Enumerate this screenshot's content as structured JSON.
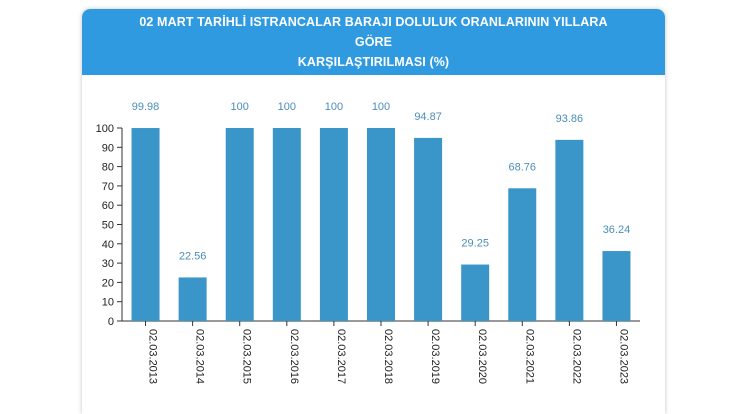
{
  "header": {
    "title_line1": "02 MART TARİHLİ ISTRANCALAR BARAJI DOLULUK ORANLARININ YILLARA GÖRE",
    "title_line2": "KARŞILAŞTIRILMASI (%)"
  },
  "colors": {
    "header_bg": "#2f9ae0",
    "bar": "#3a95c8",
    "value_label": "#4a8db8"
  },
  "chart_data": {
    "type": "bar",
    "title": "02 MART TARİHLİ ISTRANCALAR BARAJI DOLULUK ORANLARININ YILLARA GÖRE KARŞILAŞTIRILMASI (%)",
    "categories": [
      "02.03.2013",
      "02.03.2014",
      "02.03.2015",
      "02.03.2016",
      "02.03.2017",
      "02.03.2018",
      "02.03.2019",
      "02.03.2020",
      "02.03.2021",
      "02.03.2022",
      "02.03.2023"
    ],
    "values": [
      99.98,
      22.56,
      100,
      100,
      100,
      100,
      94.87,
      29.25,
      68.76,
      93.86,
      36.24
    ],
    "value_labels": [
      "99.98",
      "22.56",
      "100",
      "100",
      "100",
      "100",
      "94.87",
      "29.25",
      "68.76",
      "93.86",
      "36.24"
    ],
    "ylim": [
      0,
      100
    ],
    "yticks": [
      0,
      10,
      20,
      30,
      40,
      50,
      60,
      70,
      80,
      90,
      100
    ],
    "xlabel": "",
    "ylabel": "",
    "grid": false,
    "legend": "none"
  }
}
